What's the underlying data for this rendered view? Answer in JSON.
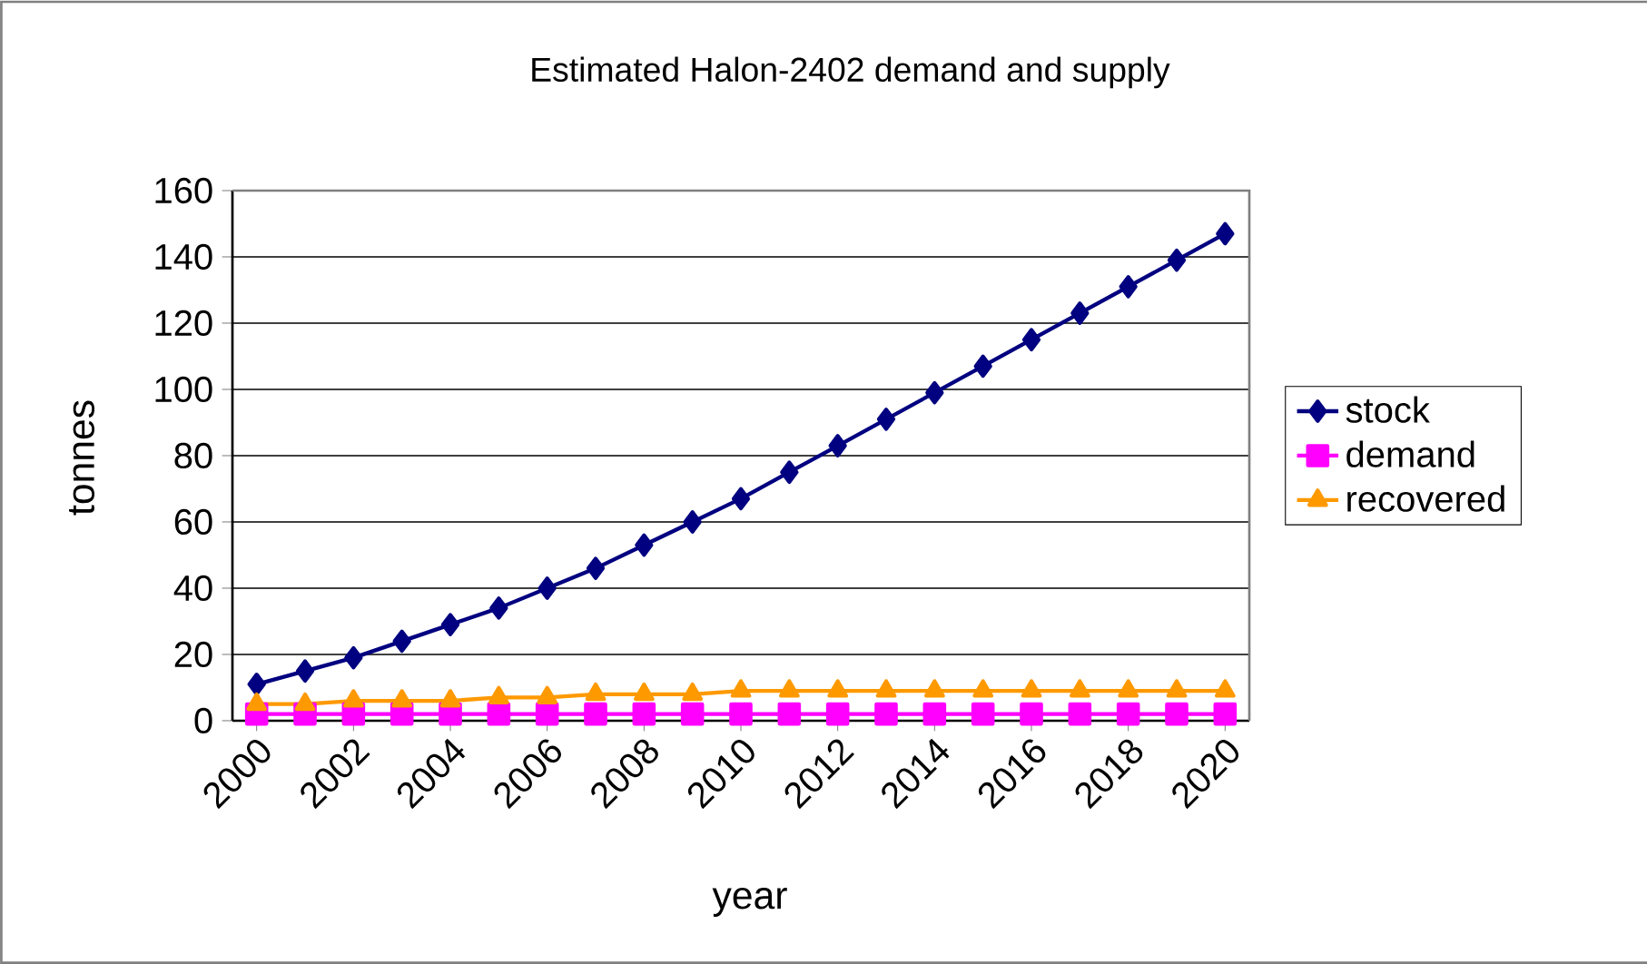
{
  "chart_data": {
    "type": "line",
    "title": "Estimated Halon-2402 demand and supply",
    "xlabel": "year",
    "ylabel": "tonnes",
    "x": [
      2000,
      2001,
      2002,
      2003,
      2004,
      2005,
      2006,
      2007,
      2008,
      2009,
      2010,
      2011,
      2012,
      2013,
      2014,
      2015,
      2016,
      2017,
      2018,
      2019,
      2020
    ],
    "series": [
      {
        "name": "stock",
        "color": "#000080",
        "marker": "diamond",
        "values": [
          11,
          15,
          19,
          24,
          29,
          34,
          40,
          46,
          53,
          60,
          67,
          75,
          83,
          91,
          99,
          107,
          115,
          123,
          131,
          139,
          147
        ]
      },
      {
        "name": "demand",
        "color": "#ff00ff",
        "marker": "square",
        "values": [
          2,
          2,
          2,
          2,
          2,
          2,
          2,
          2,
          2,
          2,
          2,
          2,
          2,
          2,
          2,
          2,
          2,
          2,
          2,
          2,
          2
        ]
      },
      {
        "name": "recovered",
        "color": "#ff9900",
        "marker": "triangle",
        "values": [
          5,
          5,
          6,
          6,
          6,
          7,
          7,
          8,
          8,
          8,
          9,
          9,
          9,
          9,
          9,
          9,
          9,
          9,
          9,
          9,
          9
        ]
      }
    ],
    "xlim": [
      1999.5,
      2020.5
    ],
    "xticks": [
      2000,
      2002,
      2004,
      2006,
      2008,
      2010,
      2012,
      2014,
      2016,
      2018,
      2020
    ],
    "ylim": [
      0,
      160
    ],
    "yticks": [
      0,
      20,
      40,
      60,
      80,
      100,
      120,
      140,
      160
    ],
    "grid": "y",
    "legend": "right",
    "line_style": "solid"
  }
}
